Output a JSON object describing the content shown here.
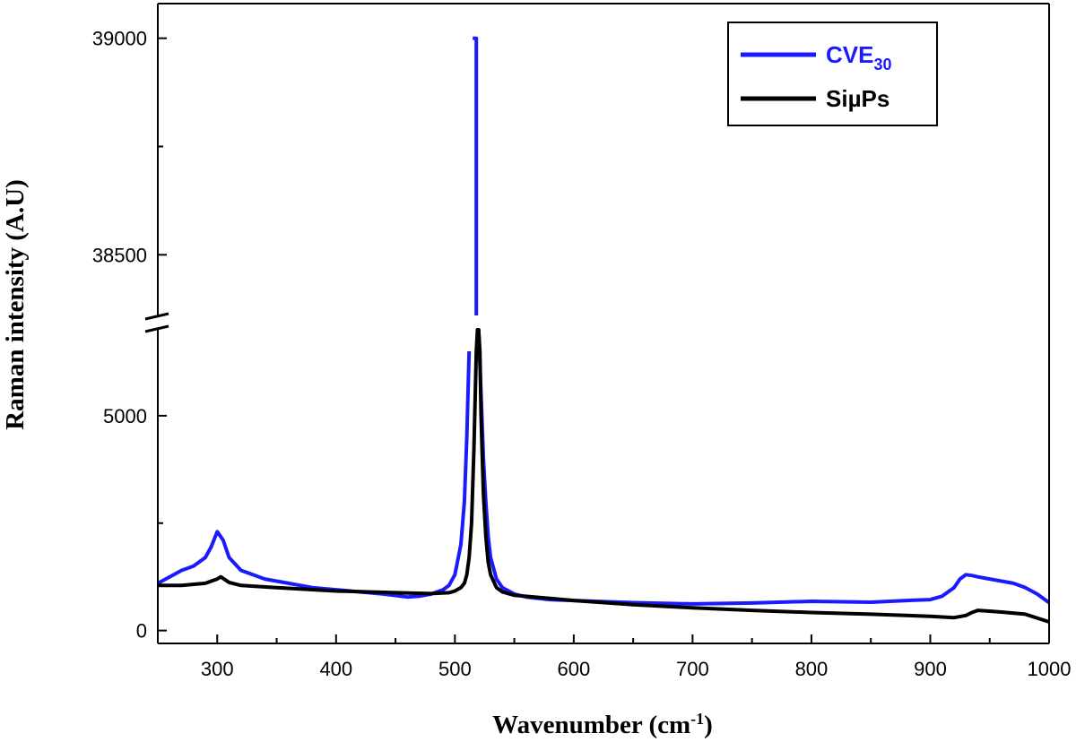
{
  "chart_data": {
    "type": "line",
    "title": "",
    "xlabel": "Wavenumber (cm",
    "xlabel_sup": "-1",
    "xlabel_end": ")",
    "ylabel": "Raman intensity (A.U)",
    "xlim": [
      250,
      1000
    ],
    "ylim_lower": [
      -300,
      7000
    ],
    "ylim_upper": [
      38360,
      39080
    ],
    "y_axis_break": true,
    "x_ticks": [
      "300",
      "400",
      "500",
      "600",
      "700",
      "800",
      "900",
      "1000"
    ],
    "y_ticks_lower": [
      "0",
      "5000"
    ],
    "y_ticks_upper": [
      "38500",
      "39000"
    ],
    "grid": false,
    "legend_position": "top-right",
    "series": [
      {
        "name": "CVE",
        "name_sub": "30",
        "color": "#1a1aff",
        "x": [
          250,
          260,
          270,
          280,
          290,
          295,
          300,
          305,
          310,
          320,
          330,
          340,
          350,
          360,
          380,
          400,
          420,
          440,
          460,
          470,
          480,
          490,
          495,
          500,
          505,
          508,
          510,
          512,
          514,
          515,
          516,
          517,
          518,
          520,
          522,
          524,
          526,
          528,
          530,
          535,
          540,
          550,
          560,
          580,
          600,
          650,
          700,
          750,
          800,
          850,
          880,
          900,
          910,
          920,
          925,
          930,
          935,
          940,
          950,
          960,
          970,
          980,
          990,
          1000
        ],
        "y": [
          1100,
          1250,
          1400,
          1500,
          1700,
          1950,
          2300,
          2100,
          1700,
          1400,
          1300,
          1200,
          1150,
          1100,
          1000,
          950,
          900,
          850,
          780,
          800,
          850,
          950,
          1050,
          1300,
          2000,
          3000,
          4500,
          6500,
          15000,
          39000,
          39000,
          39000,
          39000,
          7000,
          5500,
          4000,
          3000,
          2200,
          1700,
          1200,
          1000,
          850,
          780,
          720,
          700,
          650,
          620,
          640,
          680,
          660,
          700,
          720,
          800,
          1000,
          1200,
          1300,
          1280,
          1250,
          1200,
          1150,
          1100,
          1000,
          850,
          650
        ]
      },
      {
        "name": "SiµPs",
        "color": "#000000",
        "x": [
          250,
          270,
          290,
          295,
          300,
          303,
          310,
          320,
          350,
          400,
          450,
          480,
          495,
          500,
          505,
          508,
          510,
          512,
          514,
          516,
          518,
          519,
          520,
          521,
          522,
          524,
          526,
          528,
          530,
          535,
          540,
          550,
          600,
          650,
          700,
          750,
          800,
          850,
          900,
          920,
          930,
          935,
          940,
          950,
          960,
          980,
          1000
        ],
        "y": [
          1050,
          1050,
          1100,
          1150,
          1200,
          1250,
          1120,
          1050,
          1000,
          920,
          880,
          860,
          880,
          920,
          1000,
          1100,
          1300,
          1700,
          2500,
          4200,
          6500,
          7000,
          7000,
          6500,
          5000,
          3200,
          2200,
          1600,
          1300,
          1000,
          900,
          820,
          700,
          600,
          530,
          470,
          420,
          380,
          330,
          300,
          350,
          420,
          470,
          450,
          430,
          380,
          200
        ]
      }
    ]
  }
}
